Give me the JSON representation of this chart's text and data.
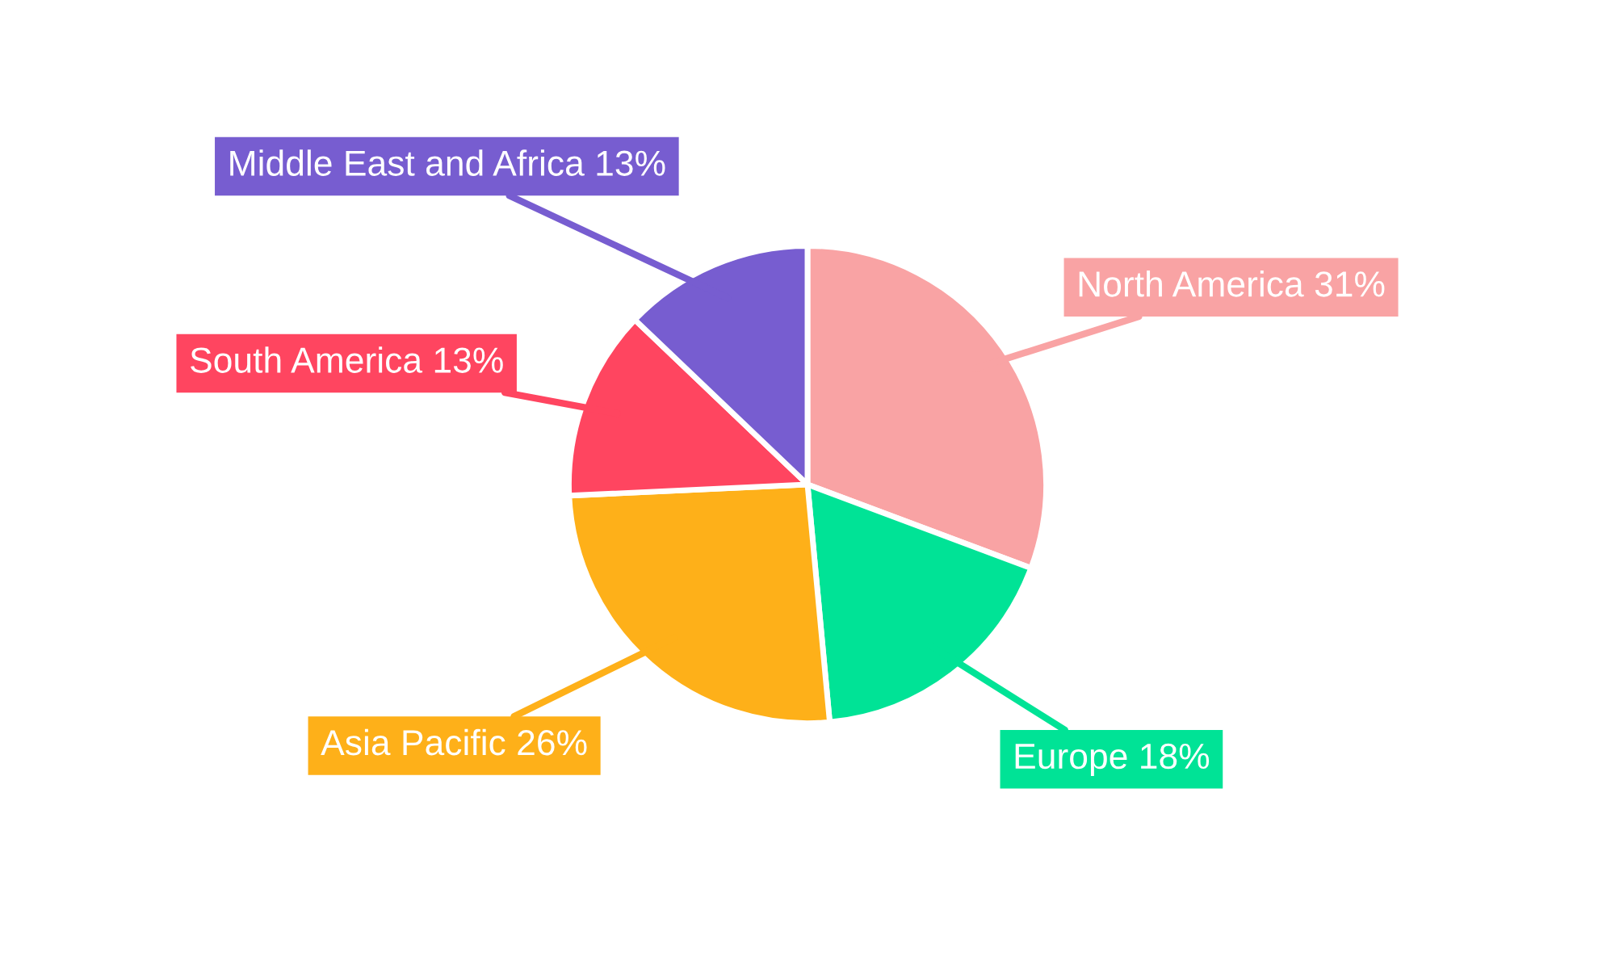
{
  "chart_data": {
    "type": "pie",
    "categories": [
      "North America",
      "Europe",
      "Asia Pacific",
      "South America",
      "Middle East and Africa"
    ],
    "values": [
      31,
      18,
      26,
      13,
      13
    ],
    "value_labels": [
      "31%",
      "18%",
      "26%",
      "13%",
      "13%"
    ],
    "colors": [
      "#f9a3a4",
      "#00e396",
      "#feb019",
      "#ff4560",
      "#775dd0"
    ],
    "legend": false
  }
}
